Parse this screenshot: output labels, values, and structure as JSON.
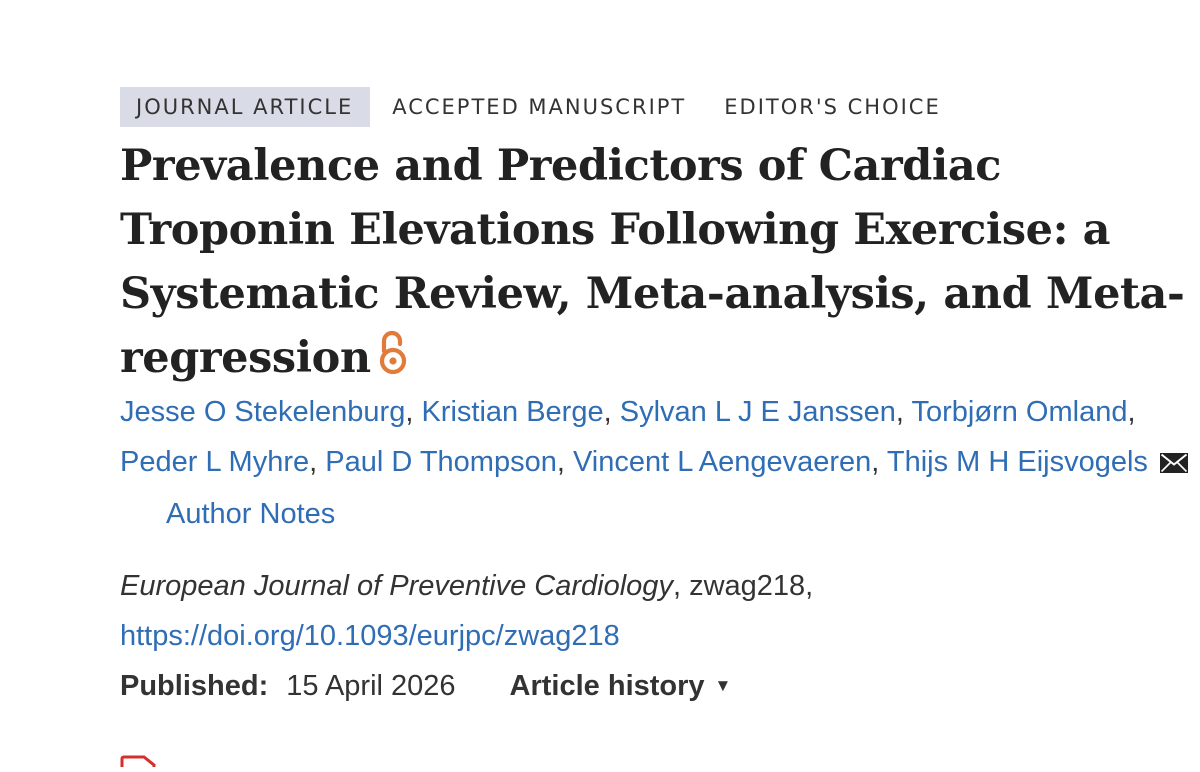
{
  "tags": {
    "primary": "JOURNAL ARTICLE",
    "accepted": "ACCEPTED MANUSCRIPT",
    "editors_choice": "EDITOR'S CHOICE"
  },
  "title": "Prevalence and Predictors of Cardiac Troponin Elevations Following Exercise: a Systematic Review, Meta-analysis, and Meta-regression",
  "open_access_icon": "open-lock-icon",
  "authors": [
    "Jesse O Stekelenburg",
    "Kristian Berge",
    "Sylvan L J E Janssen",
    "Torbjørn Omland",
    "Peder L Myhre",
    "Paul D Thompson",
    "Vincent L Aengevaeren",
    "Thijs M H Eijsvogels"
  ],
  "author_separator": ", ",
  "mail_icon": "envelope-icon",
  "author_notes": "Author Notes",
  "citation": {
    "journal": "European Journal of Preventive Cardiology",
    "suffix": ", zwag218,",
    "doi": "https://doi.org/10.1093/eurjpc/zwag218"
  },
  "published": {
    "label": "Published:",
    "date": "15 April 2026"
  },
  "article_history": {
    "label": "Article history",
    "caret": "▼"
  },
  "pdf_icon": "pdf-icon",
  "colors": {
    "link": "#2f6db5",
    "text": "#222222",
    "tag_bg": "#d9dce6",
    "open_access": "#e07b39",
    "pdf": "#d32f2f"
  }
}
